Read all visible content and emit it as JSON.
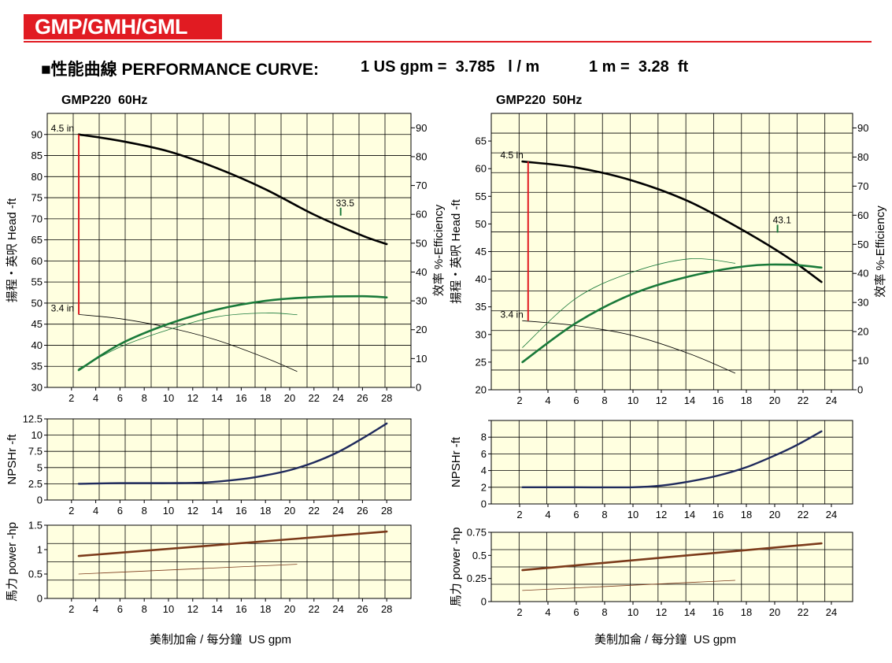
{
  "header": {
    "brand": "GMP/GMH/GML",
    "title": "■性能曲線 PERFORMANCE CURVE:",
    "conversion_1": "1 US gpm =  3.785   l / m",
    "conversion_2": "1 m =  3.28  ft",
    "brand_color": "#e11b22"
  },
  "colors": {
    "panel_bg": "#ffffe0",
    "grid": "#000000",
    "head_curve": "#000000",
    "efficiency_curve": "#1a7a3a",
    "npshr_curve": "#1f2a5c",
    "power_curve": "#7b3a1a",
    "impeller_limit": "#e11b22",
    "duty_mark": "#1a7a3a"
  },
  "chart_data": [
    {
      "title": "GMP220  60Hz",
      "x_caption": "美制加侖 / 每分鐘  US gpm",
      "panels": [
        {
          "type": "line",
          "name": "head-efficiency",
          "ylabel": "揚程・英呎  Head -ft",
          "y2label": "效率  %-Efficiency",
          "xlim": [
            0,
            30
          ],
          "ylim": [
            30,
            95
          ],
          "y2lim": [
            0,
            95
          ],
          "x_ticks": [
            2,
            4,
            6,
            8,
            10,
            12,
            14,
            16,
            18,
            20,
            22,
            24,
            26,
            28
          ],
          "y_ticks": [
            30,
            35,
            40,
            45,
            50,
            55,
            60,
            65,
            70,
            75,
            80,
            85,
            90
          ],
          "y2_ticks": [
            0,
            10,
            20,
            30,
            40,
            50,
            60,
            70,
            80,
            90
          ],
          "grid": true,
          "series": [
            {
              "axis": "y",
              "role": "head",
              "width": 2.6,
              "x": [
                2.6,
                6,
                10,
                14,
                18,
                22,
                26,
                28
              ],
              "values": [
                90,
                88.5,
                86,
                82,
                77,
                71,
                66,
                64
              ]
            },
            {
              "axis": "y",
              "role": "head",
              "width": 0.8,
              "x": [
                2.6,
                6,
                10,
                14,
                18,
                20.6
              ],
              "values": [
                47.3,
                46.3,
                44.2,
                41.2,
                37.0,
                33.8
              ]
            },
            {
              "axis": "y2",
              "role": "efficiency",
              "width": 2.6,
              "x": [
                2.6,
                6,
                10,
                14,
                18,
                22,
                26,
                28
              ],
              "values": [
                6,
                15,
                22,
                27,
                30,
                31.3,
                31.6,
                31.2
              ]
            },
            {
              "axis": "y2",
              "role": "efficiency",
              "width": 0.8,
              "x": [
                2.6,
                6,
                10,
                14,
                18,
                20.6
              ],
              "values": [
                6.5,
                14,
                20,
                24.5,
                25.8,
                25.2
              ]
            }
          ],
          "annotations": [
            {
              "text": "4.5 in",
              "x": 2.6,
              "y": 90,
              "side": "left"
            },
            {
              "text": "3.4 in",
              "x": 2.6,
              "y": 47.3,
              "side": "left"
            },
            {
              "text": "33.5",
              "x": 24.2,
              "y": 71.5,
              "side": "duty"
            }
          ],
          "impeller_limit": {
            "x": 2.6,
            "y_from": 47.3,
            "y_to": 90
          }
        },
        {
          "type": "line",
          "name": "npshr",
          "ylabel": "NPSHr -ft",
          "xlim": [
            0,
            30
          ],
          "ylim": [
            0,
            12.5
          ],
          "x_ticks": [
            2,
            4,
            6,
            8,
            10,
            12,
            14,
            16,
            18,
            20,
            22,
            24,
            26,
            28
          ],
          "y_ticks": [
            0,
            2.5,
            5,
            7.5,
            10,
            12.5
          ],
          "y_tick_labels": [
            "0",
            "2.5",
            "5",
            "7.5",
            "10",
            "12.5"
          ],
          "grid": true,
          "series": [
            {
              "axis": "y",
              "role": "npshr",
              "width": 2.4,
              "x": [
                2.6,
                6,
                10,
                13,
                16,
                18,
                20,
                22,
                24,
                26,
                28
              ],
              "values": [
                2.5,
                2.6,
                2.6,
                2.7,
                3.2,
                3.8,
                4.6,
                5.8,
                7.4,
                9.5,
                11.8
              ]
            }
          ]
        },
        {
          "type": "line",
          "name": "power",
          "ylabel": "馬力  power -hp",
          "xlim": [
            0,
            30
          ],
          "ylim": [
            0,
            1.5
          ],
          "x_ticks": [
            2,
            4,
            6,
            8,
            10,
            12,
            14,
            16,
            18,
            20,
            22,
            24,
            26,
            28
          ],
          "y_ticks": [
            0,
            0.5,
            1,
            1.5
          ],
          "y_tick_labels": [
            "0",
            "0.5",
            "1",
            "1.5"
          ],
          "grid": true,
          "series": [
            {
              "axis": "y",
              "role": "power",
              "width": 2.6,
              "x": [
                2.6,
                28
              ],
              "values": [
                0.87,
                1.37
              ]
            },
            {
              "axis": "y",
              "role": "power",
              "width": 0.8,
              "x": [
                2.6,
                20.6
              ],
              "values": [
                0.5,
                0.7
              ]
            }
          ]
        }
      ]
    },
    {
      "title": "GMP220  50Hz",
      "x_caption": "美制加侖 / 每分鐘  US gpm",
      "panels": [
        {
          "type": "line",
          "name": "head-efficiency",
          "ylabel": "揚程・英呎  Head -ft",
          "y2label": "效率  %-Efficiency",
          "xlim": [
            0,
            25.5
          ],
          "ylim": [
            20,
            70
          ],
          "y2lim": [
            0,
            95
          ],
          "x_ticks": [
            2,
            4,
            6,
            8,
            10,
            12,
            14,
            16,
            18,
            20,
            22,
            24
          ],
          "y_ticks": [
            20,
            25,
            30,
            35,
            40,
            45,
            50,
            55,
            60,
            65
          ],
          "y2_ticks": [
            0,
            10,
            20,
            30,
            40,
            50,
            60,
            70,
            80,
            90
          ],
          "grid": true,
          "series": [
            {
              "axis": "y",
              "role": "head",
              "width": 2.6,
              "x": [
                2.2,
                6,
                10,
                14,
                18,
                21,
                23.3
              ],
              "values": [
                61.3,
                60.2,
                57.8,
                54,
                48.5,
                43.8,
                39.5
              ]
            },
            {
              "axis": "y",
              "role": "head",
              "width": 0.8,
              "x": [
                2.2,
                6,
                10,
                14,
                17.2
              ],
              "values": [
                32.5,
                31.6,
                29.8,
                26.5,
                23.0
              ]
            },
            {
              "axis": "y2",
              "role": "efficiency",
              "width": 2.6,
              "x": [
                2.2,
                6,
                10,
                14,
                18,
                21,
                23.3
              ],
              "values": [
                9.5,
                23,
                33,
                39,
                42.5,
                43,
                42
              ]
            },
            {
              "axis": "y2",
              "role": "efficiency",
              "width": 0.8,
              "x": [
                2.2,
                6,
                10,
                14,
                17.2
              ],
              "values": [
                14.5,
                31.5,
                40.5,
                45,
                43.5
              ]
            }
          ],
          "annotations": [
            {
              "text": "4.5 in",
              "x": 2.6,
              "y": 61.3,
              "side": "left"
            },
            {
              "text": "3.4 in",
              "x": 2.6,
              "y": 32.5,
              "side": "left"
            },
            {
              "text": "43.1",
              "x": 20.2,
              "y": 49,
              "side": "duty"
            }
          ],
          "impeller_limit": {
            "x": 2.6,
            "y_from": 32.5,
            "y_to": 61.3
          }
        },
        {
          "type": "line",
          "name": "npshr",
          "ylabel": "NPSHr -ft",
          "xlim": [
            0,
            25.5
          ],
          "ylim": [
            0,
            10
          ],
          "x_ticks": [
            2,
            4,
            6,
            8,
            10,
            12,
            14,
            16,
            18,
            20,
            22,
            24
          ],
          "y_ticks": [
            0,
            2,
            4,
            6,
            8,
            10
          ],
          "y_tick_labels": [
            "0",
            "2",
            "4",
            "6",
            "8",
            ""
          ],
          "grid": true,
          "series": [
            {
              "axis": "y",
              "role": "npshr",
              "width": 2.4,
              "x": [
                2.2,
                6,
                10,
                12,
                14,
                16,
                18,
                20,
                21.5,
                23.3
              ],
              "values": [
                2.0,
                2.0,
                2.0,
                2.2,
                2.7,
                3.4,
                4.4,
                5.8,
                7.0,
                8.7
              ]
            }
          ]
        },
        {
          "type": "line",
          "name": "power",
          "ylabel": "馬力  power -hp",
          "xlim": [
            0,
            25.5
          ],
          "ylim": [
            0,
            0.75
          ],
          "x_ticks": [
            2,
            4,
            6,
            8,
            10,
            12,
            14,
            16,
            18,
            20,
            22,
            24
          ],
          "y_ticks": [
            0,
            0.25,
            0.5,
            0.75
          ],
          "y_tick_labels": [
            "0",
            "0.25",
            "0.5",
            "0.75"
          ],
          "grid": true,
          "series": [
            {
              "axis": "y",
              "role": "power",
              "width": 2.6,
              "x": [
                2.2,
                23.3
              ],
              "values": [
                0.34,
                0.63
              ]
            },
            {
              "axis": "y",
              "role": "power",
              "width": 0.8,
              "x": [
                2.2,
                17.2
              ],
              "values": [
                0.12,
                0.23
              ]
            }
          ]
        }
      ]
    }
  ]
}
